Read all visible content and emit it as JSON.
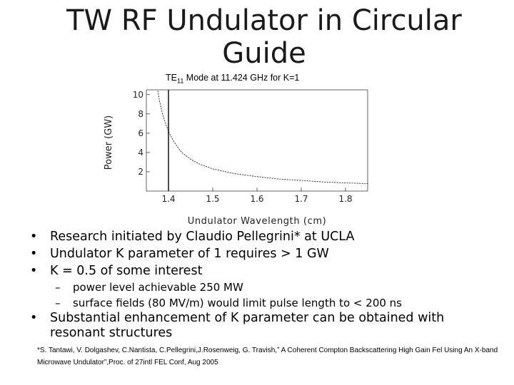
{
  "slide": {
    "title": "TW RF Undulator in Circular Guide",
    "subtitle_prefix": "TE",
    "subtitle_sub": "11",
    "subtitle_rest": " Mode at 11.424 GHz for K=1"
  },
  "chart_data": {
    "type": "line",
    "xlabel": "Undulator Wavelength (cm)",
    "ylabel": "Power (GW)",
    "xlim": [
      1.35,
      1.85
    ],
    "ylim": [
      0,
      10.5
    ],
    "x_ticks": [
      "1.4",
      "1.5",
      "1.6",
      "1.7",
      "1.8"
    ],
    "y_ticks": [
      "2",
      "4",
      "6",
      "8",
      "10"
    ],
    "marker_x": 1.4,
    "series": [
      {
        "x": [
          1.376,
          1.38,
          1.385,
          1.39,
          1.395,
          1.4,
          1.41,
          1.42,
          1.43,
          1.45,
          1.47,
          1.5,
          1.55,
          1.6,
          1.65,
          1.7,
          1.75,
          1.8,
          1.85
        ],
        "values": [
          10.4,
          9.3,
          8.3,
          7.5,
          6.8,
          6.2,
          5.3,
          4.6,
          4.0,
          3.3,
          2.8,
          2.3,
          1.8,
          1.5,
          1.25,
          1.1,
          0.95,
          0.85,
          0.78
        ]
      }
    ]
  },
  "bullets": [
    {
      "marker": "•",
      "text": "Research initiated by Claudio Pellegrini* at UCLA"
    },
    {
      "marker": "•",
      "text": "Undulator K parameter of 1 requires > 1 GW"
    },
    {
      "marker": "•",
      "text": "K = 0.5 of some interest"
    }
  ],
  "sub_bullets": [
    {
      "marker": "–",
      "text": "power level achievable 250 MW"
    },
    {
      "marker": "–",
      "text": "surface fields (80 MV/m) would limit pulse length to < 200 ns"
    }
  ],
  "last_bullet": {
    "marker": "•",
    "text": "Substantial enhancement of K parameter can be obtained with resonant structures"
  },
  "footnote": "*S. Tantawi, V. Dolgashev, C.Nantista, C.Pellegrini,J.Rosenweig, G. Travish,” A Coherent Compton Backscattering High Gain Fel Using An X-band Microwave Undulator”,Proc. of 27intl FEL Conf, Aug 2005"
}
